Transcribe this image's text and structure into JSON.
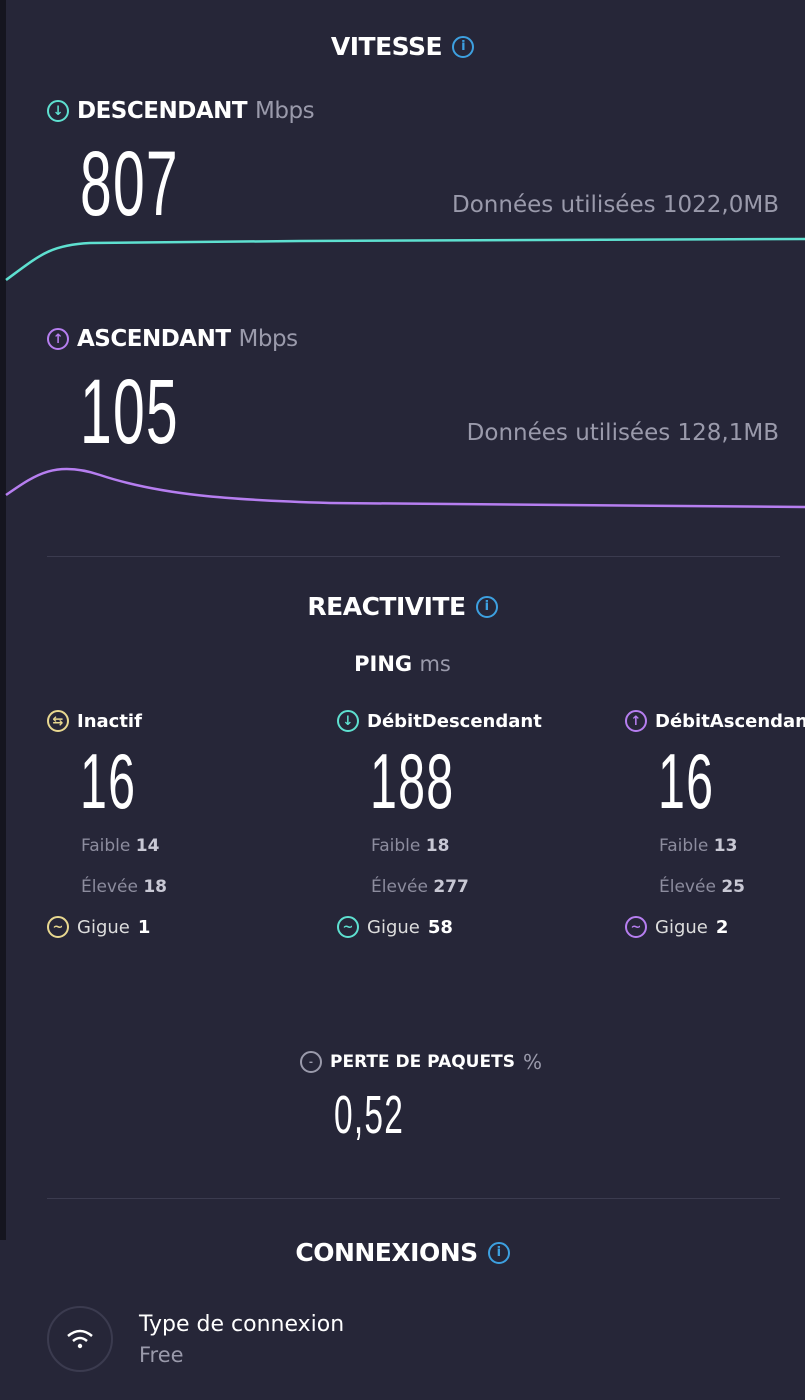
{
  "speed": {
    "title": "VITESSE",
    "download": {
      "label": "DESCENDANT",
      "unit": "Mbps",
      "value": "807",
      "data_used": "Données utilisées 1022,0MB",
      "color": "#5ee0d0"
    },
    "upload": {
      "label": "ASCENDANT",
      "unit": "Mbps",
      "value": "105",
      "data_used": "Données utilisées 128,1MB",
      "color": "#b67ef0"
    }
  },
  "responsiveness": {
    "title": "REACTIVITE",
    "ping_label": "PING",
    "ping_unit": "ms",
    "columns": [
      {
        "name": "Inactif",
        "value": "16",
        "low_label": "Faible",
        "low": "14",
        "high_label": "Élevée",
        "high": "18",
        "jitter_label": "Gigue",
        "jitter": "1",
        "color": "#e8d890",
        "icon": "idle-icon"
      },
      {
        "name": "DébitDescendant",
        "value": "188",
        "low_label": "Faible",
        "low": "18",
        "high_label": "Élevée",
        "high": "277",
        "jitter_label": "Gigue",
        "jitter": "58",
        "color": "#5ee0d0",
        "icon": "arrow-down-icon"
      },
      {
        "name": "DébitAscendant",
        "value": "16",
        "low_label": "Faible",
        "low": "13",
        "high_label": "Élevée",
        "high": "25",
        "jitter_label": "Gigue",
        "jitter": "2",
        "color": "#b67ef0",
        "icon": "arrow-up-icon"
      }
    ],
    "packet_loss": {
      "label": "PERTE DE PAQUETS",
      "unit": "%",
      "value": "0,52"
    }
  },
  "connections": {
    "title": "CONNEXIONS",
    "type_label": "Type de connexion",
    "type_value": "Free"
  }
}
